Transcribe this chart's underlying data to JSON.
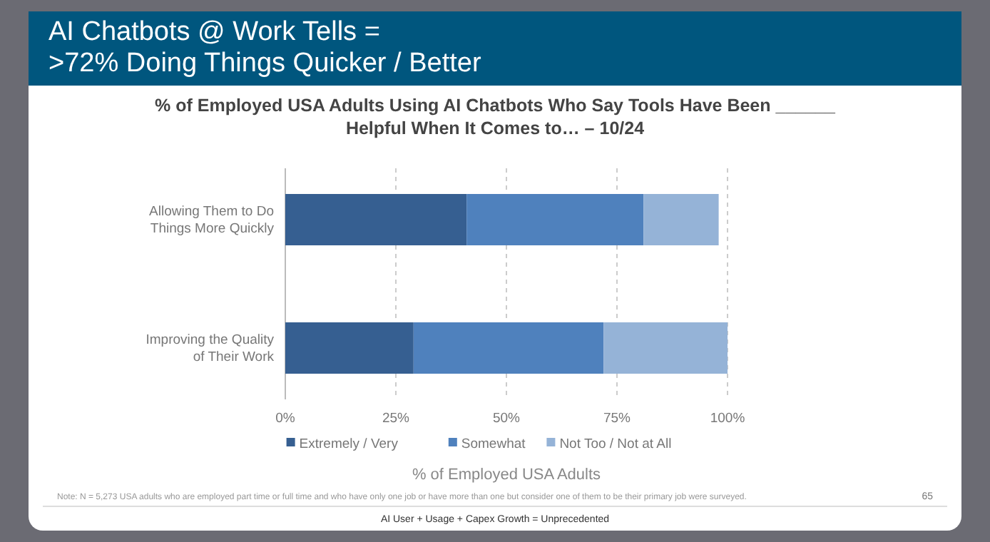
{
  "chart_data": {
    "type": "bar",
    "orientation": "horizontal",
    "stacked": true,
    "title": "AI Chatbots @ Work Tells =\n>72% Doing Things Quicker / Better",
    "subtitle": "% of Employed USA Adults Using AI Chatbots Who Say Tools Have Been ______\nHelpful When It Comes to… – 10/24",
    "categories": [
      "Allowing Them to Do\nThings More Quickly",
      "Improving the Quality\nof Their Work"
    ],
    "series": [
      {
        "name": "Extremely / Very",
        "color": "#365f91",
        "values": [
          41,
          29
        ]
      },
      {
        "name": "Somewhat",
        "color": "#4f81bd",
        "values": [
          40,
          43
        ]
      },
      {
        "name": "Not Too / Not at All",
        "color": "#95b3d7",
        "values": [
          17,
          28
        ]
      }
    ],
    "xlim": [
      0,
      100
    ],
    "xticks": [
      {
        "value": 0,
        "label": "0%"
      },
      {
        "value": 25,
        "label": "25%"
      },
      {
        "value": 50,
        "label": "50%"
      },
      {
        "value": 75,
        "label": "75%"
      },
      {
        "value": 100,
        "label": "100%"
      }
    ],
    "xlabel": "% of Employed USA Adults",
    "grid": "x",
    "legend": "bottom",
    "annotations": [
      "Note: N = 5,273 USA adults who are employed part time or full time and who have only one job or have more than one but consider one of them to be their primary job were surveyed.",
      "65",
      "AI User + Usage + Capex Growth = Unprecedented"
    ]
  }
}
